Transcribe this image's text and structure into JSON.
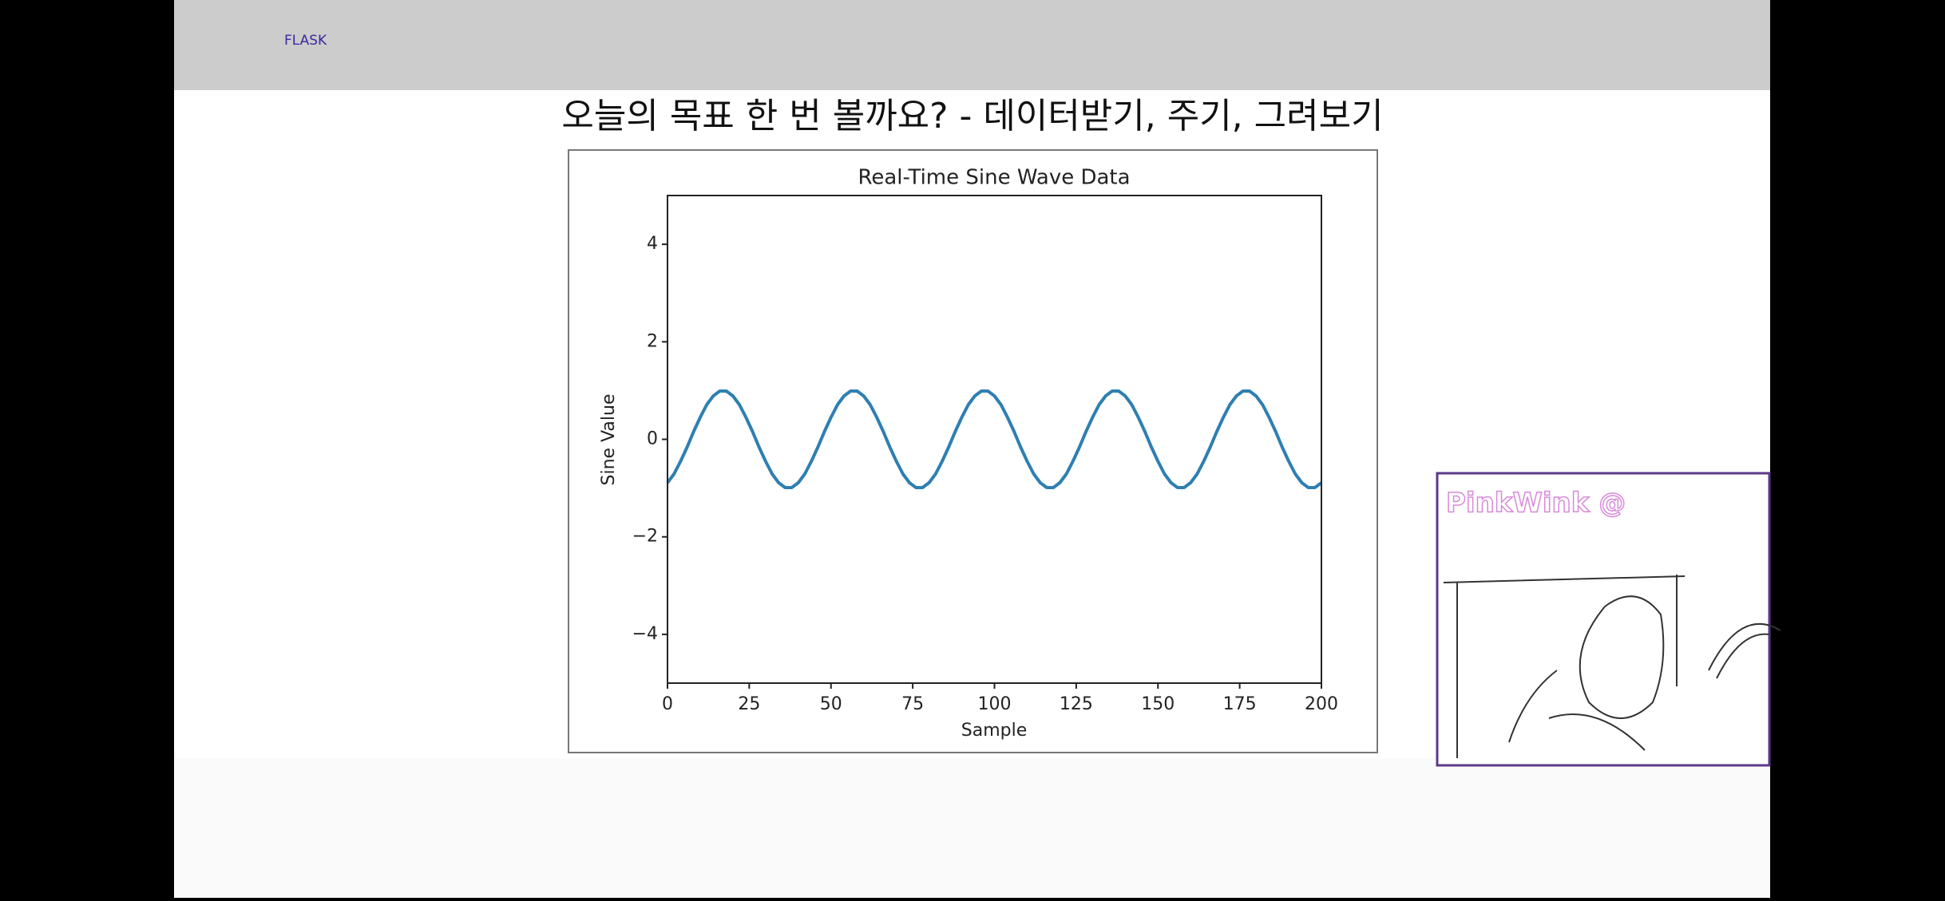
{
  "header": {
    "brand": "FLASK"
  },
  "slide": {
    "title": "오늘의 목표 한 번 볼까요? - 데이터받기, 주기, 그려보기"
  },
  "webcam": {
    "label": "PinkWink @"
  },
  "chart_data": {
    "type": "line",
    "title": "Real-Time Sine Wave Data",
    "x_label": "Sample",
    "y_label": "Sine Value",
    "x": [
      0,
      2,
      4,
      6,
      8,
      10,
      12,
      14,
      16,
      18,
      20,
      22,
      24,
      26,
      28,
      30,
      32,
      34,
      36,
      38,
      40,
      42,
      44,
      46,
      48,
      50,
      52,
      54,
      56,
      58,
      60,
      62,
      64,
      66,
      68,
      70,
      72,
      74,
      76,
      78,
      80,
      82,
      84,
      86,
      88,
      90,
      92,
      94,
      96,
      98,
      100,
      102,
      104,
      106,
      108,
      110,
      112,
      114,
      116,
      118,
      120,
      122,
      124,
      126,
      128,
      130,
      132,
      134,
      136,
      138,
      140,
      142,
      144,
      146,
      148,
      150,
      152,
      154,
      156,
      158,
      160,
      162,
      164,
      166,
      168,
      170,
      172,
      174,
      176,
      178,
      180,
      182,
      184,
      186,
      188,
      190,
      192,
      194,
      196,
      198,
      200
    ],
    "series": [
      {
        "color": "#2e7fb2",
        "values": [
          -0.89,
          -0.71,
          -0.45,
          -0.16,
          0.16,
          0.45,
          0.71,
          0.89,
          0.99,
          0.99,
          0.89,
          0.71,
          0.45,
          0.16,
          -0.16,
          -0.45,
          -0.71,
          -0.89,
          -0.99,
          -0.99,
          -0.89,
          -0.71,
          -0.45,
          -0.16,
          0.16,
          0.45,
          0.71,
          0.89,
          0.99,
          0.99,
          0.89,
          0.71,
          0.45,
          0.16,
          -0.16,
          -0.45,
          -0.71,
          -0.89,
          -0.99,
          -0.99,
          -0.89,
          -0.71,
          -0.45,
          -0.16,
          0.16,
          0.45,
          0.71,
          0.89,
          0.99,
          0.99,
          0.89,
          0.71,
          0.45,
          0.16,
          -0.16,
          -0.45,
          -0.71,
          -0.89,
          -0.99,
          -0.99,
          -0.89,
          -0.71,
          -0.45,
          -0.16,
          0.16,
          0.45,
          0.71,
          0.89,
          0.99,
          0.99,
          0.89,
          0.71,
          0.45,
          0.16,
          -0.16,
          -0.45,
          -0.71,
          -0.89,
          -0.99,
          -0.99,
          -0.89,
          -0.71,
          -0.45,
          -0.16,
          0.16,
          0.45,
          0.71,
          0.89,
          0.99,
          0.99,
          0.89,
          0.71,
          0.45,
          0.16,
          -0.16,
          -0.45,
          -0.71,
          -0.89,
          -0.99,
          -0.99,
          -0.89
        ]
      }
    ],
    "xlim": [
      0,
      200
    ],
    "xticks": [
      0,
      25,
      50,
      75,
      100,
      125,
      150,
      175,
      200
    ],
    "ylim": [
      -5,
      5
    ],
    "yticks": [
      {
        "value": -4,
        "label": "−4"
      },
      {
        "value": -2,
        "label": "−2"
      },
      0,
      2,
      4
    ]
  }
}
